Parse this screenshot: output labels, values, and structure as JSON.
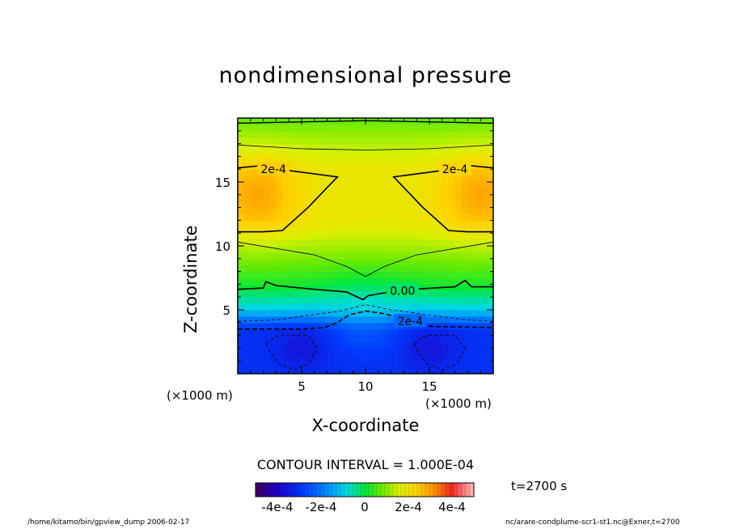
{
  "page": {
    "title": "nondimensional pressure",
    "contour_interval": "CONTOUR INTERVAL = 1.000E-04",
    "time_label": "t=2700 s",
    "footer_left": "/home/kitamo/bin/gpview_dump  2006-02-17",
    "footer_right": "nc/arare-condplume-scr1-st1.nc@Exner,t=2700",
    "x_unit": "(×1000 m)"
  },
  "chart_data": {
    "type": "heatmap",
    "title": "nondimensional pressure",
    "xlabel": "X-coordinate",
    "ylabel": "Z-coordinate",
    "x_unit": "(×1000 m)",
    "y_unit": "(×1000 m)",
    "xlim": [
      0,
      20
    ],
    "ylim": [
      0,
      20
    ],
    "x_ticks": [
      5,
      10,
      15
    ],
    "y_ticks": [
      5,
      10,
      15
    ],
    "contour_labels": [
      {
        "text": "2e-4",
        "x": 2.8,
        "z": 16.0
      },
      {
        "text": "2e-4",
        "x": 17.0,
        "z": 16.0
      },
      {
        "text": "0.00",
        "x": 12.9,
        "z": 6.5
      },
      {
        "text": "2e-4",
        "x": 13.5,
        "z": 4.1
      }
    ],
    "colorbar": {
      "min": -0.0005,
      "max": 0.0005,
      "ticks": [
        -0.0004,
        -0.0002,
        0,
        0.0002,
        0.0004
      ],
      "tick_labels": [
        "-4e-4",
        "-2e-4",
        "0",
        "2e-4",
        "4e-4"
      ]
    },
    "field_summary": {
      "max_value_approx": 0.0003,
      "min_value_approx": -0.00035,
      "max_regions": "upper-left and upper-right (z ~ 13-16)",
      "min_regions": "lower-left and lower-right near surface (z ~ 1-3)"
    }
  }
}
